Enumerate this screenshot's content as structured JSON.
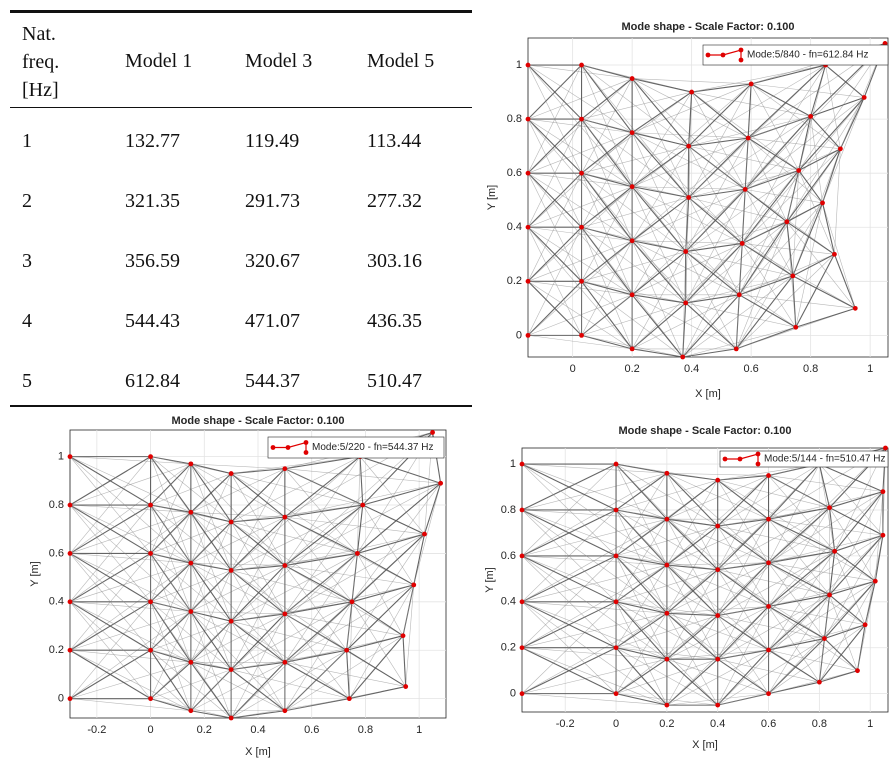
{
  "table": {
    "header": [
      "Nat. freq. [Hz]",
      "Model 1",
      "Model 3",
      "Model 5"
    ],
    "rows": [
      [
        1,
        132.77,
        119.49,
        113.44
      ],
      [
        2,
        321.35,
        291.73,
        277.32
      ],
      [
        3,
        356.59,
        320.67,
        303.16
      ],
      [
        4,
        544.43,
        471.07,
        436.35
      ],
      [
        5,
        612.84,
        544.37,
        510.47
      ]
    ]
  },
  "chart_data": [
    {
      "type": "mesh",
      "title": "Mode shape - Scale Factor: 0.100",
      "xlabel": "X [m]",
      "ylabel": "Y [m]",
      "xlim": [
        -0.15,
        1.06
      ],
      "ylim": [
        -0.08,
        1.1
      ],
      "xticks": [
        0,
        0.2,
        0.4,
        0.6,
        0.8,
        1
      ],
      "yticks": [
        0,
        0.2,
        0.4,
        0.6,
        0.8,
        1
      ],
      "grid": true,
      "legend": "upper right",
      "series": [
        {
          "name": "Mode:5/840 - fn=612.84 Hz",
          "color": "#e00000",
          "columns": [
            {
              "x": [
                -0.15,
                -0.15,
                -0.15,
                -0.15,
                -0.15,
                -0.15
              ],
              "y": [
                0,
                0.2,
                0.4,
                0.6,
                0.8,
                1
              ]
            },
            {
              "x": [
                0.03,
                0.03,
                0.03,
                0.03,
                0.03,
                0.03
              ],
              "y": [
                0,
                0.2,
                0.4,
                0.6,
                0.8,
                1
              ]
            },
            {
              "x": [
                0.2,
                0.2,
                0.2,
                0.2,
                0.2,
                0.2
              ],
              "y": [
                -0.05,
                0.15,
                0.35,
                0.55,
                0.75,
                0.95
              ]
            },
            {
              "x": [
                0.37,
                0.38,
                0.38,
                0.39,
                0.39,
                0.4
              ],
              "y": [
                -0.08,
                0.12,
                0.31,
                0.51,
                0.7,
                0.9
              ]
            },
            {
              "x": [
                0.55,
                0.56,
                0.57,
                0.58,
                0.59,
                0.6
              ],
              "y": [
                -0.05,
                0.15,
                0.34,
                0.54,
                0.73,
                0.93
              ]
            },
            {
              "x": [
                0.75,
                0.74,
                0.72,
                0.76,
                0.8,
                0.85
              ],
              "y": [
                0.03,
                0.22,
                0.42,
                0.61,
                0.81,
                1.0
              ]
            },
            {
              "x": [
                0.95,
                0.88,
                0.84,
                0.9,
                0.98,
                1.05
              ],
              "y": [
                0.1,
                0.3,
                0.49,
                0.69,
                0.88,
                1.08
              ]
            }
          ]
        }
      ]
    },
    {
      "type": "mesh",
      "title": "Mode shape - Scale Factor: 0.100",
      "xlabel": "X [m]",
      "ylabel": "Y [m]",
      "xlim": [
        -0.3,
        1.1
      ],
      "ylim": [
        -0.08,
        1.11
      ],
      "xticks": [
        -0.2,
        0,
        0.2,
        0.4,
        0.6,
        0.8,
        1
      ],
      "yticks": [
        0,
        0.2,
        0.4,
        0.6,
        0.8,
        1
      ],
      "grid": true,
      "legend": "upper right",
      "series": [
        {
          "name": "Mode:5/220 - fn=544.37 Hz",
          "color": "#e00000",
          "columns": [
            {
              "x": [
                -0.3,
                -0.3,
                -0.3,
                -0.3,
                -0.3,
                -0.3
              ],
              "y": [
                0,
                0.2,
                0.4,
                0.6,
                0.8,
                1
              ]
            },
            {
              "x": [
                0,
                0,
                0,
                0,
                0,
                0
              ],
              "y": [
                0,
                0.2,
                0.4,
                0.6,
                0.8,
                1
              ]
            },
            {
              "x": [
                0.15,
                0.15,
                0.15,
                0.15,
                0.15,
                0.15
              ],
              "y": [
                -0.05,
                0.15,
                0.36,
                0.56,
                0.77,
                0.97
              ]
            },
            {
              "x": [
                0.3,
                0.3,
                0.3,
                0.3,
                0.3,
                0.3
              ],
              "y": [
                -0.08,
                0.12,
                0.32,
                0.53,
                0.73,
                0.93
              ]
            },
            {
              "x": [
                0.5,
                0.5,
                0.5,
                0.5,
                0.5,
                0.5
              ],
              "y": [
                -0.05,
                0.15,
                0.35,
                0.55,
                0.75,
                0.95
              ]
            },
            {
              "x": [
                0.74,
                0.73,
                0.75,
                0.77,
                0.79,
                0.78
              ],
              "y": [
                0,
                0.2,
                0.4,
                0.6,
                0.8,
                1.0
              ]
            },
            {
              "x": [
                0.95,
                0.94,
                0.98,
                1.02,
                1.08,
                1.05
              ],
              "y": [
                0.05,
                0.26,
                0.47,
                0.68,
                0.89,
                1.1
              ]
            }
          ]
        }
      ]
    },
    {
      "type": "mesh",
      "title": "Mode shape - Scale Factor: 0.100",
      "xlabel": "X [m]",
      "ylabel": "Y [m]",
      "xlim": [
        -0.37,
        1.07
      ],
      "ylim": [
        -0.08,
        1.07
      ],
      "xticks": [
        -0.2,
        0,
        0.2,
        0.4,
        0.6,
        0.8,
        1
      ],
      "yticks": [
        0,
        0.2,
        0.4,
        0.6,
        0.8,
        1
      ],
      "grid": true,
      "legend": "upper right",
      "series": [
        {
          "name": "Mode:5/144 - fn=510.47 Hz",
          "color": "#e00000",
          "columns": [
            {
              "x": [
                -0.37,
                -0.37,
                -0.37,
                -0.37,
                -0.37,
                -0.37
              ],
              "y": [
                0,
                0.2,
                0.4,
                0.6,
                0.8,
                1
              ]
            },
            {
              "x": [
                0,
                0,
                0,
                0,
                0,
                0
              ],
              "y": [
                0,
                0.2,
                0.4,
                0.6,
                0.8,
                1
              ]
            },
            {
              "x": [
                0.2,
                0.2,
                0.2,
                0.2,
                0.2,
                0.2
              ],
              "y": [
                -0.05,
                0.15,
                0.35,
                0.56,
                0.76,
                0.96
              ]
            },
            {
              "x": [
                0.4,
                0.4,
                0.4,
                0.4,
                0.4,
                0.4
              ],
              "y": [
                -0.05,
                0.15,
                0.34,
                0.54,
                0.73,
                0.93
              ]
            },
            {
              "x": [
                0.6,
                0.6,
                0.6,
                0.6,
                0.6,
                0.6
              ],
              "y": [
                0,
                0.19,
                0.38,
                0.57,
                0.76,
                0.95
              ]
            },
            {
              "x": [
                0.8,
                0.82,
                0.84,
                0.86,
                0.84,
                0.8
              ],
              "y": [
                0.05,
                0.24,
                0.43,
                0.62,
                0.81,
                1.0
              ]
            },
            {
              "x": [
                0.95,
                0.98,
                1.02,
                1.05,
                1.05,
                1.06
              ],
              "y": [
                0.1,
                0.3,
                0.49,
                0.69,
                0.88,
                1.07
              ]
            }
          ]
        }
      ]
    }
  ]
}
